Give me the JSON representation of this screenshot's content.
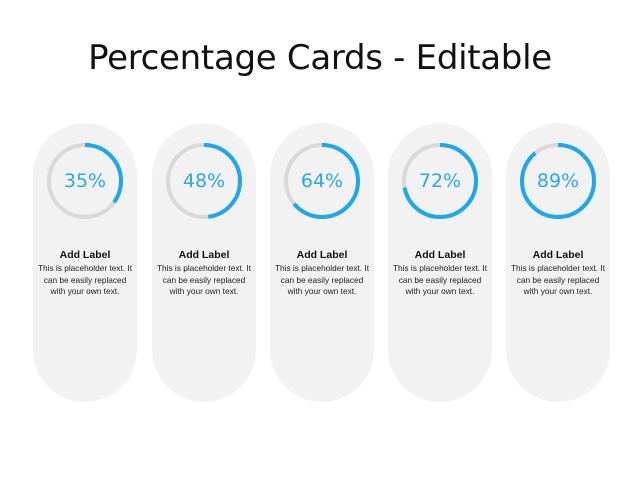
{
  "title": "Percentage Cards - Editable",
  "colors": {
    "accent": "#1ea7ec",
    "track": "#d9d9d9",
    "card": "#f2f2f2"
  },
  "cards": [
    {
      "value": 35,
      "percent": "35%",
      "label": "Add Label",
      "text": "This is placeholder text. It can be easily replaced with your own text."
    },
    {
      "value": 48,
      "percent": "48%",
      "label": "Add Label",
      "text": "This is placeholder text. It can be easily replaced with your own text."
    },
    {
      "value": 64,
      "percent": "64%",
      "label": "Add Label",
      "text": "This is placeholder text. It can be easily replaced with your own text."
    },
    {
      "value": 72,
      "percent": "72%",
      "label": "Add Label",
      "text": "This is placeholder text. It can be easily replaced with your own text."
    },
    {
      "value": 89,
      "percent": "89%",
      "label": "Add Label",
      "text": "This is placeholder text. It can be easily replaced with your own text."
    }
  ]
}
